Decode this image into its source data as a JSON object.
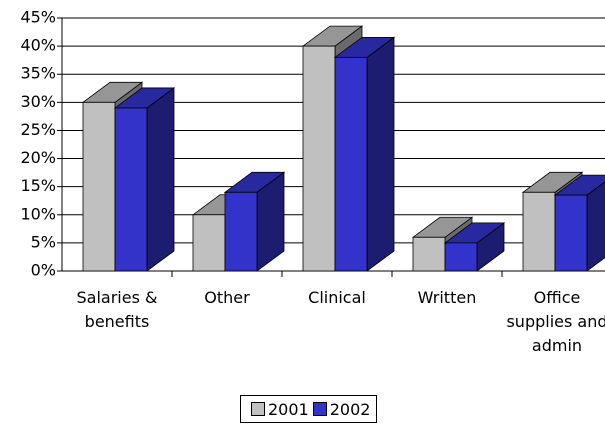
{
  "chart_data": {
    "type": "bar3d",
    "categories": [
      "Salaries & benefits",
      "Other",
      "Clinical",
      "Written",
      "Office supplies and admin"
    ],
    "series": [
      {
        "name": "2001",
        "color": "#c0c0c0",
        "values": [
          30,
          10,
          40,
          6,
          14
        ]
      },
      {
        "name": "2002",
        "color": "#3333cc",
        "values": [
          29,
          14,
          38,
          5,
          13.5
        ]
      }
    ],
    "ylim": [
      0,
      45
    ],
    "yticks": [
      {
        "value": 0,
        "label": "0%"
      },
      {
        "value": 5,
        "label": "5%"
      },
      {
        "value": 10,
        "label": "10%"
      },
      {
        "value": 15,
        "label": "15%"
      },
      {
        "value": 20,
        "label": "20%"
      },
      {
        "value": 25,
        "label": "25%"
      },
      {
        "value": 30,
        "label": "30%"
      },
      {
        "value": 35,
        "label": "35%"
      },
      {
        "value": 40,
        "label": "40%"
      },
      {
        "value": 45,
        "label": "45%"
      }
    ],
    "grid": true,
    "legend": "bottom"
  }
}
